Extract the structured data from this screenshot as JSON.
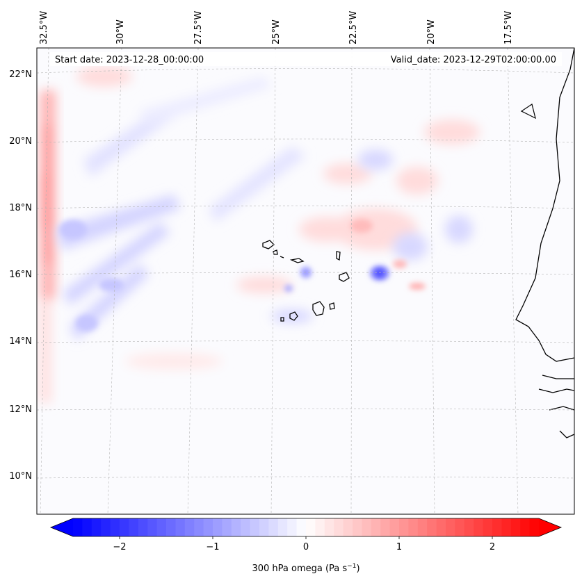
{
  "map": {
    "start_date": "Start date: 2023-12-28_00:00:00",
    "valid_date": "Valid_date: 2023-12-29T02:00:00.00",
    "lon_labels": [
      "32.5°W",
      "30°W",
      "27.5°W",
      "25°W",
      "22.5°W",
      "20°W",
      "17.5°W"
    ],
    "lat_labels": [
      "22°N",
      "20°N",
      "18°N",
      "16°N",
      "14°N",
      "12°N",
      "10°N"
    ],
    "gridlines": "dashed"
  },
  "colorbar": {
    "ticks": [
      "−2",
      "−1",
      "0",
      "1",
      "2"
    ],
    "tick_values": [
      -2,
      -1,
      0,
      1,
      2
    ],
    "range": [
      -2.5,
      2.5
    ],
    "extend": "both",
    "label": "300 hPa omega (Pa s",
    "label_exp": "−1",
    "label_close": ")",
    "colormap": "bwr",
    "neg_color": "#0000ff",
    "pos_color": "#ff0000"
  }
}
